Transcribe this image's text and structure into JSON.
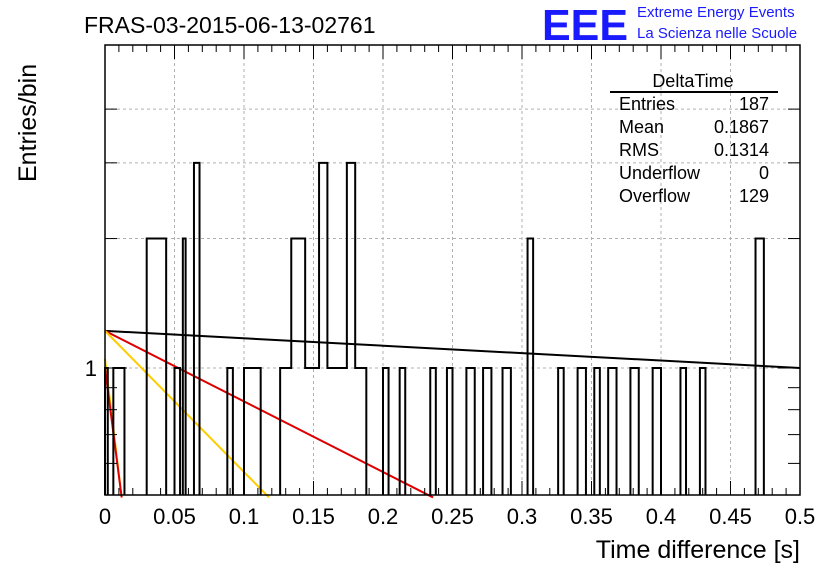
{
  "chart_data": {
    "type": "histogram",
    "title": "FRAS-03-2015-06-13-02761",
    "xlabel": "Time difference [s]",
    "ylabel": "Entries/bin",
    "log_y": true,
    "grid": true,
    "xlim": [
      0,
      0.5
    ],
    "x_ticks": [
      "0",
      "0.05",
      "0.1",
      "0.15",
      "0.2",
      "0.25",
      "0.3",
      "0.35",
      "0.4",
      "0.45",
      "0.5"
    ],
    "y_tick_labels": [
      "1"
    ],
    "bin_width": 0.002,
    "bins": [
      {
        "x0": 0.0,
        "x1": 0.002,
        "count": 1
      },
      {
        "x0": 0.006,
        "x1": 0.014,
        "count": 1
      },
      {
        "x0": 0.03,
        "x1": 0.044,
        "count": 2
      },
      {
        "x0": 0.05,
        "x1": 0.054,
        "count": 1
      },
      {
        "x0": 0.056,
        "x1": 0.058,
        "count": 2
      },
      {
        "x0": 0.064,
        "x1": 0.068,
        "count": 3
      },
      {
        "x0": 0.088,
        "x1": 0.092,
        "count": 1
      },
      {
        "x0": 0.1,
        "x1": 0.112,
        "count": 1
      },
      {
        "x0": 0.126,
        "x1": 0.134,
        "count": 1
      },
      {
        "x0": 0.134,
        "x1": 0.144,
        "count": 2
      },
      {
        "x0": 0.144,
        "x1": 0.154,
        "count": 1
      },
      {
        "x0": 0.154,
        "x1": 0.16,
        "count": 3
      },
      {
        "x0": 0.16,
        "x1": 0.174,
        "count": 1
      },
      {
        "x0": 0.174,
        "x1": 0.18,
        "count": 3
      },
      {
        "x0": 0.18,
        "x1": 0.188,
        "count": 1
      },
      {
        "x0": 0.2,
        "x1": 0.204,
        "count": 1
      },
      {
        "x0": 0.212,
        "x1": 0.216,
        "count": 1
      },
      {
        "x0": 0.234,
        "x1": 0.238,
        "count": 1
      },
      {
        "x0": 0.246,
        "x1": 0.25,
        "count": 1
      },
      {
        "x0": 0.26,
        "x1": 0.266,
        "count": 1
      },
      {
        "x0": 0.272,
        "x1": 0.278,
        "count": 1
      },
      {
        "x0": 0.286,
        "x1": 0.292,
        "count": 1
      },
      {
        "x0": 0.304,
        "x1": 0.308,
        "count": 2
      },
      {
        "x0": 0.326,
        "x1": 0.33,
        "count": 1
      },
      {
        "x0": 0.34,
        "x1": 0.346,
        "count": 1
      },
      {
        "x0": 0.352,
        "x1": 0.356,
        "count": 1
      },
      {
        "x0": 0.362,
        "x1": 0.368,
        "count": 1
      },
      {
        "x0": 0.378,
        "x1": 0.384,
        "count": 1
      },
      {
        "x0": 0.394,
        "x1": 0.4,
        "count": 1
      },
      {
        "x0": 0.414,
        "x1": 0.418,
        "count": 1
      },
      {
        "x0": 0.428,
        "x1": 0.432,
        "count": 1
      },
      {
        "x0": 0.468,
        "x1": 0.474,
        "count": 2
      }
    ],
    "fit_lines": [
      {
        "color": "#000000",
        "points": [
          [
            0.0,
            1.22
          ],
          [
            0.5,
            1.0
          ]
        ]
      },
      {
        "color": "#dd0000",
        "points": [
          [
            0.0,
            1.22
          ],
          [
            0.236,
            0.5
          ]
        ]
      },
      {
        "color": "#ffcc00",
        "points": [
          [
            0.0,
            1.22
          ],
          [
            0.118,
            0.5
          ]
        ]
      },
      {
        "color": "#ffcc00",
        "points": [
          [
            0.0,
            1.05
          ],
          [
            0.012,
            0.5
          ]
        ]
      },
      {
        "color": "#dd0000",
        "points": [
          [
            0.0,
            1.0
          ],
          [
            0.012,
            0.5
          ]
        ]
      }
    ]
  },
  "stats_box": {
    "title": "DeltaTime",
    "rows": [
      {
        "label": "Entries",
        "value": "187"
      },
      {
        "label": "Mean",
        "value": "0.1867"
      },
      {
        "label": "RMS",
        "value": "0.1314"
      },
      {
        "label": "Underflow",
        "value": "0"
      },
      {
        "label": "Overflow",
        "value": "129"
      }
    ]
  },
  "logo": {
    "text": "EEE",
    "line1": "Extreme Energy Events",
    "line2": "La Scienza nelle Scuole",
    "color": "#1a1aff"
  }
}
